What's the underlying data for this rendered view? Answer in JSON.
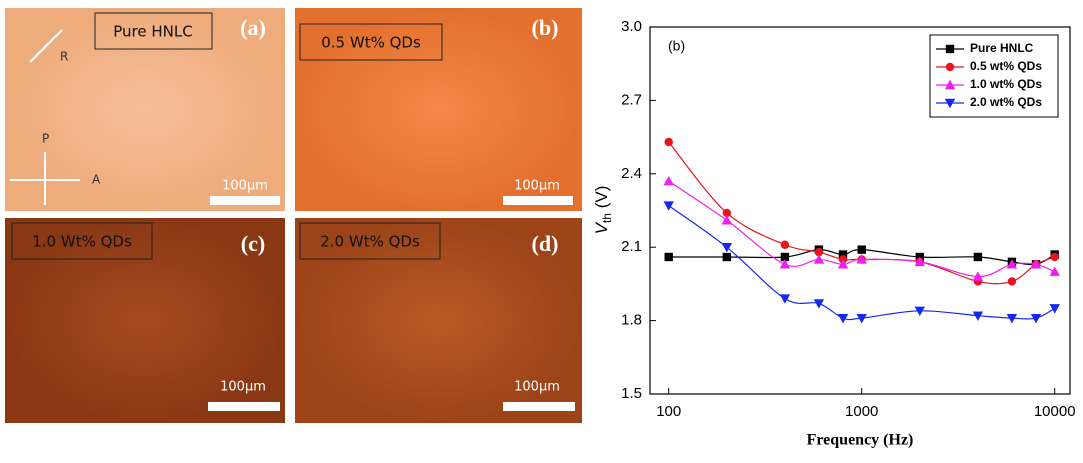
{
  "panels": [
    {
      "caption": "Pure HNLC",
      "label": "(a)",
      "scale": "100μm",
      "arrows": [
        "R",
        "P",
        "A"
      ]
    },
    {
      "caption": "0.5 Wt% QDs",
      "label": "(b)",
      "scale": "100μm"
    },
    {
      "caption": "1.0 Wt% QDs",
      "label": "(c)",
      "scale": "100μm"
    },
    {
      "caption": "2.0 Wt% QDs",
      "label": "(d)",
      "scale": "100μm"
    }
  ],
  "chart_data": {
    "type": "line",
    "annotation": "(b)",
    "xlabel": "Frequency (Hz)",
    "ylabel": "V",
    "ylabel_sub": "th",
    "ylabel_unit": " (V)",
    "x": [
      100,
      200,
      400,
      600,
      800,
      1000,
      2000,
      4000,
      6000,
      8000,
      10000
    ],
    "xscale": "log",
    "xlim": [
      80,
      12000
    ],
    "xticks": [
      100,
      1000,
      10000
    ],
    "ylim": [
      1.5,
      3.0
    ],
    "yticks": [
      1.5,
      1.8,
      2.1,
      2.4,
      2.7,
      {
        "value": 3.0,
        "label": "3.0"
      }
    ],
    "legend": "upper right",
    "series": [
      {
        "name": "Pure HNLC",
        "color": "#000000",
        "marker": "square",
        "values": [
          2.06,
          2.06,
          2.06,
          2.09,
          2.07,
          2.09,
          2.06,
          2.06,
          2.04,
          2.03,
          2.07
        ]
      },
      {
        "name": "0.5 wt% QDs",
        "color": "#e8141e",
        "marker": "circle",
        "values": [
          2.53,
          2.24,
          2.11,
          2.08,
          2.05,
          2.05,
          2.04,
          1.96,
          1.96,
          2.03,
          2.06
        ]
      },
      {
        "name": "1.0 wt% QDs",
        "color": "#f01ef0",
        "marker": "triangle-up",
        "values": [
          2.37,
          2.21,
          2.03,
          2.05,
          2.03,
          2.05,
          2.04,
          1.98,
          2.03,
          2.03,
          2.0
        ]
      },
      {
        "name": "2.0 wt% QDs",
        "color": "#1428f0",
        "marker": "triangle-down",
        "values": [
          2.27,
          2.1,
          1.89,
          1.87,
          1.81,
          1.81,
          1.84,
          1.82,
          1.81,
          1.81,
          1.85
        ]
      }
    ]
  }
}
